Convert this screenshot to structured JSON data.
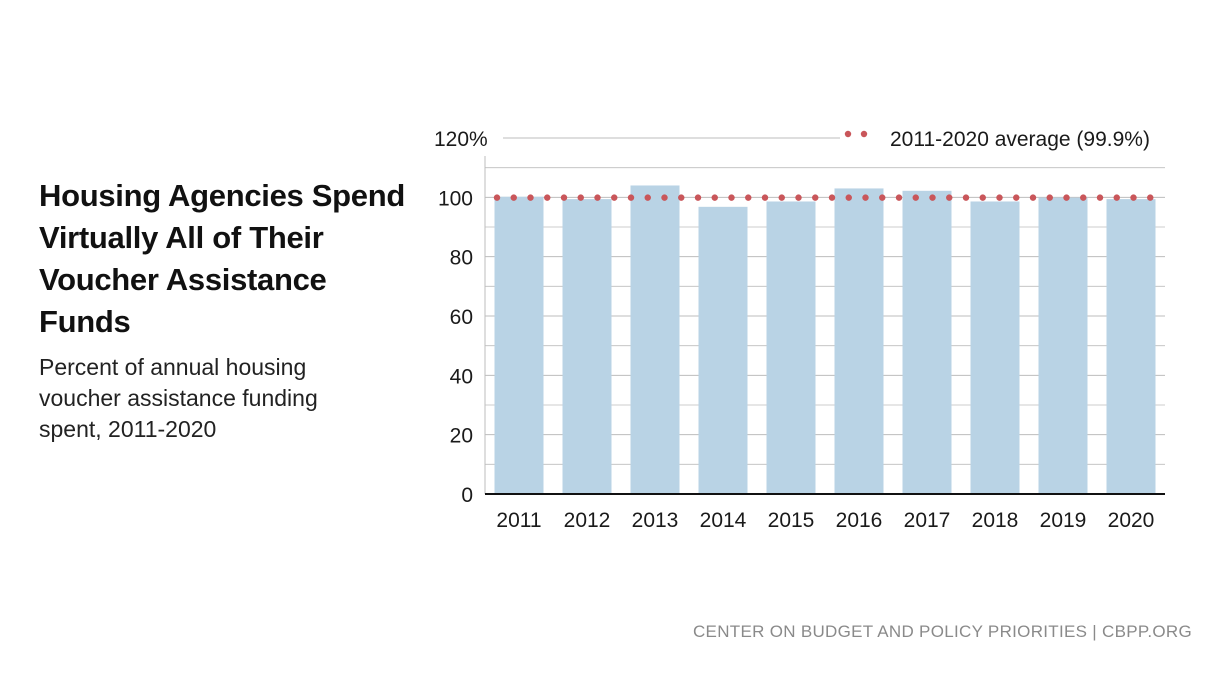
{
  "chart_data": {
    "type": "bar",
    "title": "Housing Agencies Spend Virtually All of Their Voucher Assistance Funds",
    "subtitle": "Percent of annual housing voucher assistance funding spent, 2011-2020",
    "categories": [
      "2011",
      "2012",
      "2013",
      "2014",
      "2015",
      "2016",
      "2017",
      "2018",
      "2019",
      "2020"
    ],
    "values": [
      100.2,
      99.4,
      104.0,
      96.8,
      98.6,
      103.0,
      102.2,
      98.6,
      99.9,
      99.4
    ],
    "ylim": [
      0,
      120
    ],
    "yticks": [
      0,
      20,
      40,
      60,
      80,
      100,
      120
    ],
    "ytick_labels": [
      "0",
      "20",
      "40",
      "60",
      "80",
      "100",
      "120%"
    ],
    "xlabel": "",
    "ylabel": "",
    "reference_line": {
      "value": 99.9,
      "label": "2011-2020 average (99.9%)",
      "style": "dotted"
    },
    "legend_position": "top-right",
    "colors": {
      "bar": "#b9d3e5",
      "average_line": "#c9565a",
      "grid": "#bdbdbd",
      "axis": "#111111"
    }
  },
  "source": "CENTER ON BUDGET AND POLICY PRIORITIES | CBPP.ORG"
}
